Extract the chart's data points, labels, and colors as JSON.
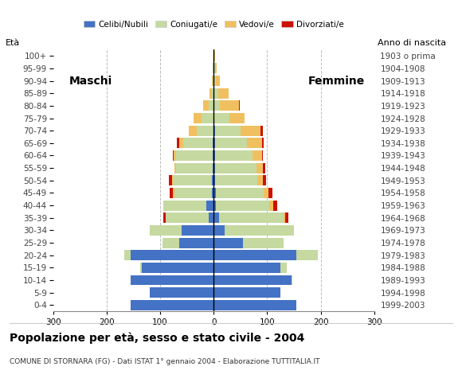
{
  "age_groups": [
    "0-4",
    "5-9",
    "10-14",
    "15-19",
    "20-24",
    "25-29",
    "30-34",
    "35-39",
    "40-44",
    "45-49",
    "50-54",
    "55-59",
    "60-64",
    "65-69",
    "70-74",
    "75-79",
    "80-84",
    "85-89",
    "90-94",
    "95-99",
    "100+"
  ],
  "birth_years": [
    "1999-2003",
    "1994-1998",
    "1989-1993",
    "1984-1988",
    "1979-1983",
    "1974-1978",
    "1969-1973",
    "1964-1968",
    "1959-1963",
    "1954-1958",
    "1949-1953",
    "1944-1948",
    "1939-1943",
    "1934-1938",
    "1929-1933",
    "1924-1928",
    "1919-1923",
    "1914-1918",
    "1909-1913",
    "1904-1908",
    "1903 o prima"
  ],
  "male": {
    "celibe": [
      155,
      120,
      155,
      135,
      155,
      65,
      60,
      10,
      14,
      4,
      4,
      2,
      2,
      2,
      0,
      0,
      0,
      0,
      0,
      0,
      0
    ],
    "coniugato": [
      0,
      0,
      0,
      2,
      12,
      30,
      60,
      80,
      80,
      70,
      72,
      68,
      68,
      55,
      32,
      22,
      10,
      4,
      2,
      2,
      0
    ],
    "vedovo": [
      0,
      0,
      0,
      0,
      0,
      0,
      0,
      0,
      0,
      2,
      2,
      4,
      5,
      8,
      14,
      16,
      10,
      4,
      2,
      0,
      0
    ],
    "divorziato": [
      0,
      0,
      0,
      0,
      0,
      0,
      0,
      4,
      0,
      6,
      6,
      0,
      2,
      4,
      0,
      0,
      0,
      0,
      0,
      0,
      0
    ]
  },
  "female": {
    "nubile": [
      155,
      125,
      145,
      125,
      155,
      55,
      20,
      10,
      4,
      4,
      2,
      2,
      2,
      2,
      2,
      0,
      0,
      0,
      0,
      0,
      0
    ],
    "coniugata": [
      0,
      0,
      2,
      12,
      40,
      75,
      130,
      120,
      100,
      90,
      80,
      78,
      70,
      60,
      48,
      30,
      12,
      8,
      4,
      2,
      0
    ],
    "vedova": [
      0,
      0,
      0,
      0,
      0,
      0,
      0,
      4,
      8,
      8,
      10,
      12,
      18,
      28,
      38,
      28,
      35,
      20,
      8,
      4,
      2
    ],
    "divorziata": [
      0,
      0,
      0,
      0,
      0,
      0,
      0,
      6,
      6,
      8,
      6,
      4,
      2,
      4,
      4,
      0,
      2,
      0,
      0,
      0,
      0
    ]
  },
  "colors": {
    "celibe": "#4472c4",
    "coniugato": "#c5d9a0",
    "vedovo": "#f0c060",
    "divorziato": "#cc1100"
  },
  "xlim": 300,
  "title": "Popolazione per età, sesso e stato civile - 2004",
  "subtitle": "COMUNE DI STORNARA (FG) - Dati ISTAT 1° gennaio 2004 - Elaborazione TUTTITALIA.IT",
  "label_eta": "Età",
  "label_anno": "Anno di nascita",
  "label_maschi": "Maschi",
  "label_femmine": "Femmine",
  "legend_labels": [
    "Celibi/Nubili",
    "Coniugati/e",
    "Vedovi/e",
    "Divorziati/e"
  ],
  "bg_color": "#ffffff",
  "grid_color": "#bbbbbb"
}
